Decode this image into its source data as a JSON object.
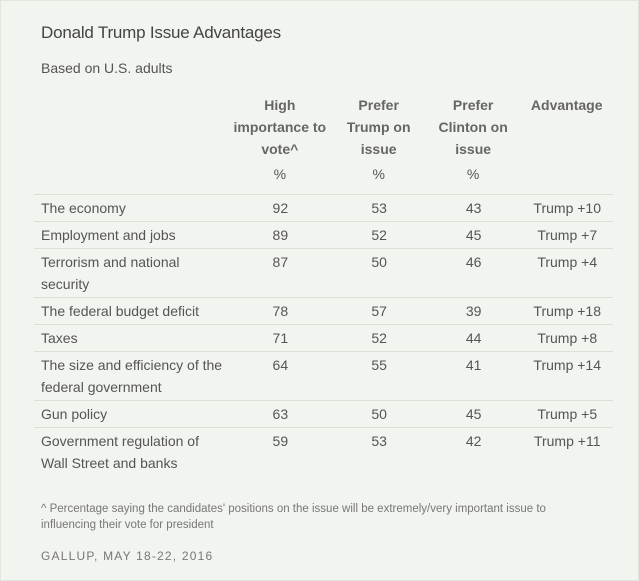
{
  "chart_data": {
    "type": "table",
    "title": "Donald Trump Issue Advantages",
    "subtitle": "Based on U.S. adults",
    "columns": [
      {
        "label": "",
        "unit": ""
      },
      {
        "label": "High importance to vote^",
        "unit": "%"
      },
      {
        "label": "Prefer Trump on issue",
        "unit": "%"
      },
      {
        "label": "Prefer Clinton on issue",
        "unit": "%"
      },
      {
        "label": "Advantage",
        "unit": ""
      }
    ],
    "rows": [
      {
        "issue": "The economy",
        "importance": "92",
        "trump": "53",
        "clinton": "43",
        "advantage": "Trump +10"
      },
      {
        "issue": "Employment and jobs",
        "importance": "89",
        "trump": "52",
        "clinton": "45",
        "advantage": "Trump +7"
      },
      {
        "issue": "Terrorism and national security",
        "importance": "87",
        "trump": "50",
        "clinton": "46",
        "advantage": "Trump +4"
      },
      {
        "issue": "The federal budget deficit",
        "importance": "78",
        "trump": "57",
        "clinton": "39",
        "advantage": "Trump +18"
      },
      {
        "issue": "Taxes",
        "importance": "71",
        "trump": "52",
        "clinton": "44",
        "advantage": "Trump +8"
      },
      {
        "issue": "The size and efficiency of the federal government",
        "importance": "64",
        "trump": "55",
        "clinton": "41",
        "advantage": "Trump +14"
      },
      {
        "issue": "Gun policy",
        "importance": "63",
        "trump": "50",
        "clinton": "45",
        "advantage": "Trump +5"
      },
      {
        "issue": "Government regulation of Wall Street and banks",
        "importance": "59",
        "trump": "53",
        "clinton": "42",
        "advantage": "Trump +11"
      }
    ],
    "footnote": "^ Percentage saying the candidates' positions on the issue will be extremely/very important issue to influencing their vote for president",
    "source": "GALLUP, MAY 18-22, 2016"
  },
  "colors": {
    "background": "#f1f4ef",
    "divider": "#dcdfd8",
    "text": "#555555"
  }
}
